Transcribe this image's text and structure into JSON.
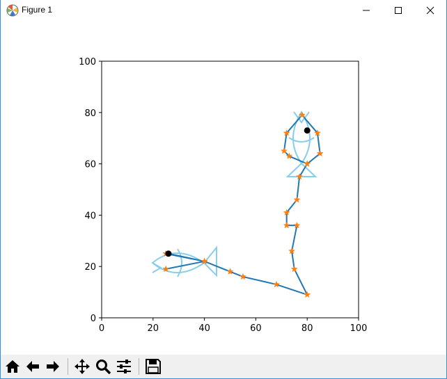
{
  "window": {
    "title": "Figure 1",
    "icon": "matplotlib-logo-icon",
    "controls": [
      "minimize-icon",
      "maximize-icon",
      "close-icon"
    ]
  },
  "toolbar": {
    "buttons": [
      {
        "name": "home-button",
        "icon": "home-icon"
      },
      {
        "name": "back-button",
        "icon": "arrow-left-icon"
      },
      {
        "name": "forward-button",
        "icon": "arrow-right-icon"
      },
      {
        "name": "pan-button",
        "icon": "move-icon"
      },
      {
        "name": "zoom-button",
        "icon": "magnifier-icon"
      },
      {
        "name": "configure-subplots-button",
        "icon": "sliders-icon"
      },
      {
        "name": "save-button",
        "icon": "floppy-disk-icon"
      }
    ]
  },
  "chart_data": {
    "type": "line",
    "xlim": [
      0,
      100
    ],
    "ylim": [
      0,
      100
    ],
    "xticks": [
      0,
      20,
      40,
      60,
      80,
      100
    ],
    "yticks": [
      0,
      20,
      40,
      60,
      80,
      100
    ],
    "xtick_labels": [
      "0",
      "20",
      "40",
      "60",
      "80",
      "100"
    ],
    "ytick_labels": [
      "0",
      "20",
      "40",
      "60",
      "80",
      "100"
    ],
    "grid": false,
    "series": [
      {
        "style": "line-with-star-markers",
        "line_color": "#1f77b4",
        "marker_color": "#ff7f0e",
        "x": [
          25,
          40,
          25,
          26,
          40,
          50,
          55,
          68,
          80,
          75,
          74,
          76,
          72,
          72,
          76,
          77,
          80,
          85,
          84,
          78,
          72,
          71,
          73,
          80
        ],
        "y": [
          19,
          22,
          25,
          25,
          22,
          18,
          16,
          13,
          9,
          19,
          26,
          36,
          36,
          41,
          46,
          55,
          60,
          64,
          72,
          79,
          72,
          65,
          63,
          60
        ]
      }
    ],
    "points": {
      "color": "#000000",
      "x": [
        26,
        80
      ],
      "y": [
        25,
        73
      ]
    },
    "fish_outlines": {
      "color": "#87ceeb",
      "count": 2
    }
  }
}
